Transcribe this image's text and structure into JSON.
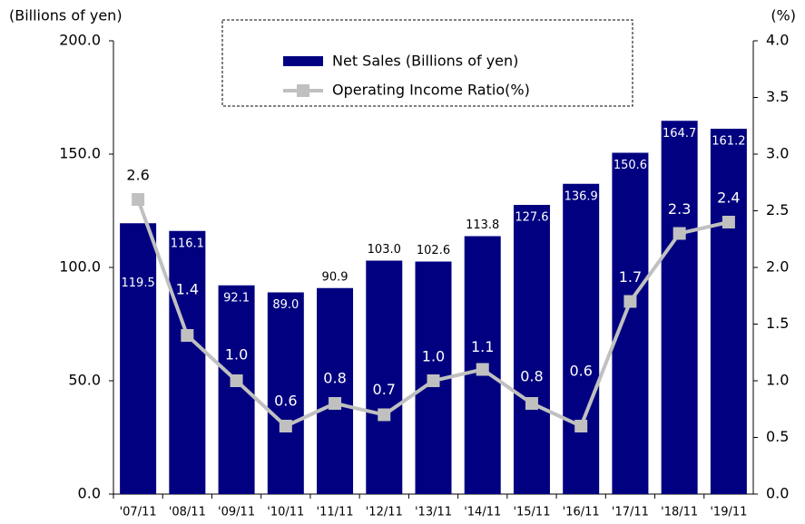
{
  "chart_data": {
    "type": "bar_line",
    "y_axis_title": "(Billions of yen)",
    "y2_axis_title": "(%)",
    "categories": [
      "'07/11",
      "'08/11",
      "'09/11",
      "'10/11",
      "'11/11",
      "'12/11",
      "'13/11",
      "'14/11",
      "'15/11",
      "'16/11",
      "'17/11",
      "'18/11",
      "'19/11"
    ],
    "series": [
      {
        "name": "Net Sales (Billions of yen)",
        "type": "bar",
        "color": "#000080",
        "values": [
          119.5,
          116.1,
          92.1,
          89.0,
          90.9,
          103.0,
          102.6,
          113.8,
          127.6,
          136.9,
          150.6,
          164.7,
          161.2
        ],
        "value_labels": [
          "119.5",
          "116.1",
          "92.1",
          "89.0",
          "90.9",
          "103.0",
          "102.6",
          "113.8",
          "127.6",
          "136.9",
          "150.6",
          "164.7",
          "161.2"
        ]
      },
      {
        "name": "Operating Income Ratio(%)",
        "type": "line",
        "axis": "y2",
        "color": "#c0c0c0",
        "values": [
          2.6,
          1.4,
          1.0,
          0.6,
          0.8,
          0.7,
          1.0,
          1.1,
          0.8,
          0.6,
          1.7,
          2.3,
          2.4
        ],
        "value_labels": [
          "2.6",
          "1.4",
          "1.0",
          "0.6",
          "0.8",
          "0.7",
          "1.0",
          "1.1",
          "0.8",
          "0.6",
          "1.7",
          "2.3",
          "2.4"
        ]
      }
    ],
    "ylim": [
      0,
      200
    ],
    "yticks": [
      {
        "value": 0,
        "label": "0.0"
      },
      {
        "value": 50,
        "label": "50.0"
      },
      {
        "value": 100,
        "label": "100.0"
      },
      {
        "value": 150,
        "label": "150.0"
      },
      {
        "value": 200,
        "label": "200.0"
      }
    ],
    "y2lim": [
      0,
      4
    ],
    "y2ticks": [
      {
        "value": 0,
        "label": "0.0"
      },
      {
        "value": 0.5,
        "label": "0.5"
      },
      {
        "value": 1,
        "label": "1.0"
      },
      {
        "value": 1.5,
        "label": "1.5"
      },
      {
        "value": 2,
        "label": "2.0"
      },
      {
        "value": 2.5,
        "label": "2.5"
      },
      {
        "value": 3,
        "label": "3.0"
      },
      {
        "value": 3.5,
        "label": "3.5"
      },
      {
        "value": 4,
        "label": "4.0"
      }
    ],
    "legend": "top"
  }
}
